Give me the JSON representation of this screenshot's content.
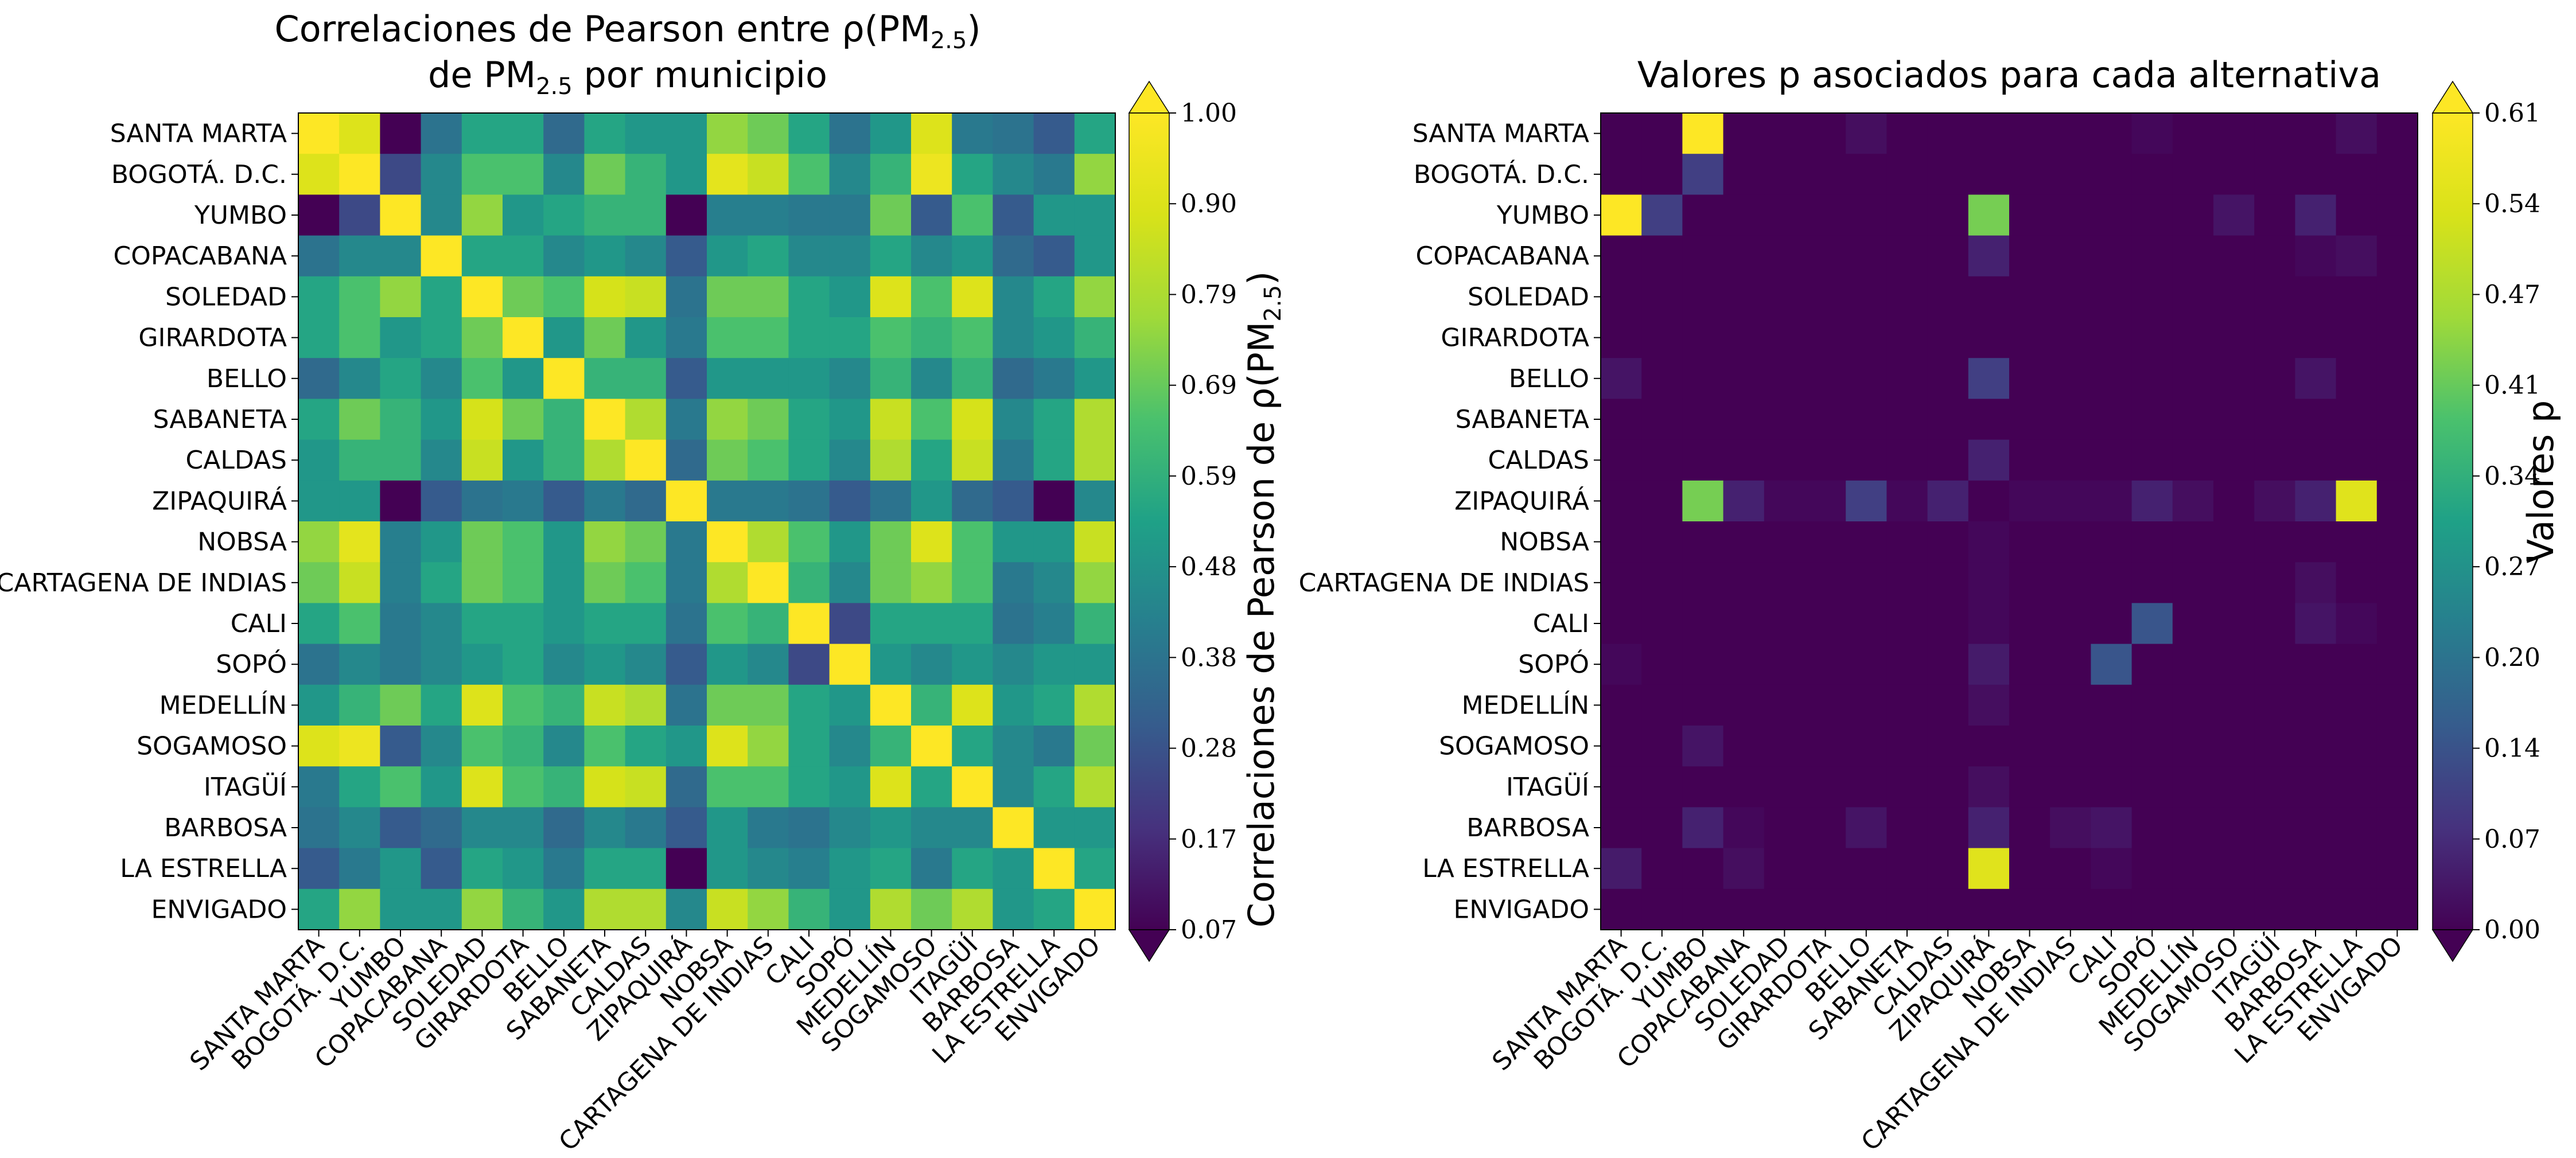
{
  "chart_data": [
    {
      "type": "heatmap",
      "title_line1": "Correlaciones de Pearson entre ρ(PM",
      "title_line1_sub": "2.5",
      "title_line1_end": ")",
      "title_line2": "de PM",
      "title_line2_sub": "2.5",
      "title_line2_end": " por municipio",
      "labels": [
        "SANTA MARTA",
        "BOGOTÁ. D.C.",
        "YUMBO",
        "COPACABANA",
        "SOLEDAD",
        "GIRARDOTA",
        "BELLO",
        "SABANETA",
        "CALDAS",
        "ZIPAQUIRÁ",
        "NOBSA",
        "CARTAGENA DE INDIAS",
        "CALI",
        "SOPÓ",
        "MEDELLÍN",
        "SOGAMOSO",
        "ITAGÜÍ",
        "BARBOSA",
        "LA ESTRELLA",
        "ENVIGADO"
      ],
      "colorbar": {
        "label": "Correlaciones de Pearson de ρ(PM",
        "label_sub": "2.5",
        "label_end": ")",
        "ticks": [
          "0.07",
          "0.17",
          "0.28",
          "0.38",
          "0.48",
          "0.59",
          "0.69",
          "0.79",
          "0.90",
          "1.00"
        ],
        "vmin": 0.07,
        "vmax": 1.0
      },
      "values": [
        [
          1.0,
          0.9,
          0.07,
          0.38,
          0.55,
          0.55,
          0.35,
          0.55,
          0.5,
          0.5,
          0.75,
          0.7,
          0.55,
          0.38,
          0.5,
          0.9,
          0.4,
          0.38,
          0.3,
          0.55
        ],
        [
          0.9,
          1.0,
          0.25,
          0.45,
          0.65,
          0.65,
          0.45,
          0.7,
          0.6,
          0.5,
          0.92,
          0.85,
          0.65,
          0.45,
          0.6,
          0.95,
          0.55,
          0.45,
          0.4,
          0.75
        ],
        [
          0.07,
          0.25,
          1.0,
          0.45,
          0.75,
          0.5,
          0.55,
          0.6,
          0.6,
          0.07,
          0.42,
          0.42,
          0.4,
          0.4,
          0.7,
          0.3,
          0.65,
          0.3,
          0.5,
          0.5
        ],
        [
          0.38,
          0.45,
          0.45,
          1.0,
          0.55,
          0.55,
          0.45,
          0.5,
          0.45,
          0.3,
          0.5,
          0.55,
          0.45,
          0.45,
          0.55,
          0.45,
          0.5,
          0.35,
          0.3,
          0.5
        ],
        [
          0.55,
          0.65,
          0.75,
          0.55,
          1.0,
          0.7,
          0.65,
          0.88,
          0.85,
          0.38,
          0.7,
          0.7,
          0.55,
          0.5,
          0.9,
          0.65,
          0.9,
          0.45,
          0.55,
          0.75
        ],
        [
          0.55,
          0.65,
          0.5,
          0.55,
          0.7,
          1.0,
          0.5,
          0.7,
          0.5,
          0.4,
          0.65,
          0.65,
          0.55,
          0.55,
          0.65,
          0.6,
          0.65,
          0.45,
          0.5,
          0.6
        ],
        [
          0.35,
          0.45,
          0.55,
          0.45,
          0.65,
          0.5,
          1.0,
          0.6,
          0.6,
          0.3,
          0.5,
          0.5,
          0.5,
          0.45,
          0.6,
          0.45,
          0.6,
          0.35,
          0.4,
          0.5
        ],
        [
          0.55,
          0.7,
          0.6,
          0.5,
          0.88,
          0.7,
          0.6,
          1.0,
          0.8,
          0.4,
          0.75,
          0.7,
          0.55,
          0.5,
          0.85,
          0.65,
          0.88,
          0.45,
          0.55,
          0.8
        ],
        [
          0.5,
          0.6,
          0.6,
          0.45,
          0.85,
          0.5,
          0.6,
          0.8,
          1.0,
          0.35,
          0.7,
          0.65,
          0.55,
          0.45,
          0.8,
          0.55,
          0.85,
          0.4,
          0.55,
          0.8
        ],
        [
          0.5,
          0.5,
          0.07,
          0.3,
          0.38,
          0.4,
          0.3,
          0.4,
          0.35,
          1.0,
          0.4,
          0.4,
          0.38,
          0.3,
          0.38,
          0.5,
          0.35,
          0.3,
          0.07,
          0.45
        ],
        [
          0.75,
          0.92,
          0.42,
          0.5,
          0.7,
          0.65,
          0.5,
          0.75,
          0.7,
          0.4,
          1.0,
          0.8,
          0.65,
          0.5,
          0.7,
          0.9,
          0.65,
          0.5,
          0.5,
          0.85
        ],
        [
          0.7,
          0.85,
          0.42,
          0.55,
          0.7,
          0.65,
          0.5,
          0.7,
          0.65,
          0.4,
          0.8,
          1.0,
          0.6,
          0.45,
          0.7,
          0.75,
          0.65,
          0.4,
          0.45,
          0.75
        ],
        [
          0.55,
          0.65,
          0.4,
          0.45,
          0.55,
          0.55,
          0.5,
          0.55,
          0.55,
          0.38,
          0.65,
          0.6,
          1.0,
          0.25,
          0.55,
          0.55,
          0.55,
          0.38,
          0.42,
          0.6
        ],
        [
          0.38,
          0.45,
          0.4,
          0.45,
          0.5,
          0.55,
          0.45,
          0.5,
          0.45,
          0.3,
          0.5,
          0.45,
          0.25,
          1.0,
          0.5,
          0.45,
          0.5,
          0.45,
          0.5,
          0.5
        ],
        [
          0.5,
          0.6,
          0.7,
          0.55,
          0.9,
          0.65,
          0.6,
          0.85,
          0.8,
          0.38,
          0.7,
          0.7,
          0.55,
          0.5,
          1.0,
          0.6,
          0.9,
          0.5,
          0.55,
          0.8
        ],
        [
          0.9,
          0.95,
          0.3,
          0.45,
          0.65,
          0.6,
          0.45,
          0.65,
          0.55,
          0.5,
          0.9,
          0.75,
          0.55,
          0.45,
          0.6,
          1.0,
          0.55,
          0.45,
          0.4,
          0.7
        ],
        [
          0.4,
          0.55,
          0.65,
          0.5,
          0.9,
          0.65,
          0.6,
          0.88,
          0.85,
          0.35,
          0.65,
          0.65,
          0.55,
          0.5,
          0.9,
          0.55,
          1.0,
          0.45,
          0.55,
          0.8
        ],
        [
          0.38,
          0.45,
          0.3,
          0.35,
          0.45,
          0.45,
          0.35,
          0.45,
          0.4,
          0.3,
          0.5,
          0.4,
          0.38,
          0.45,
          0.5,
          0.45,
          0.45,
          1.0,
          0.5,
          0.5
        ],
        [
          0.3,
          0.4,
          0.5,
          0.3,
          0.55,
          0.5,
          0.4,
          0.55,
          0.55,
          0.07,
          0.5,
          0.45,
          0.42,
          0.5,
          0.55,
          0.4,
          0.55,
          0.5,
          1.0,
          0.55
        ],
        [
          0.55,
          0.75,
          0.5,
          0.5,
          0.75,
          0.6,
          0.5,
          0.8,
          0.8,
          0.45,
          0.85,
          0.75,
          0.6,
          0.5,
          0.8,
          0.7,
          0.8,
          0.5,
          0.55,
          1.0
        ]
      ]
    },
    {
      "type": "heatmap",
      "title": "Valores p asociados para cada alternativa",
      "labels": [
        "SANTA MARTA",
        "BOGOTÁ. D.C.",
        "YUMBO",
        "COPACABANA",
        "SOLEDAD",
        "GIRARDOTA",
        "BELLO",
        "SABANETA",
        "CALDAS",
        "ZIPAQUIRÁ",
        "NOBSA",
        "CARTAGENA DE INDIAS",
        "CALI",
        "SOPÓ",
        "MEDELLÍN",
        "SOGAMOSO",
        "ITAGÜÍ",
        "BARBOSA",
        "LA ESTRELLA",
        "ENVIGADO"
      ],
      "colorbar": {
        "label": "Valores p",
        "ticks": [
          "0.00",
          "0.07",
          "0.14",
          "0.20",
          "0.27",
          "0.34",
          "0.41",
          "0.47",
          "0.54",
          "0.61"
        ],
        "vmin": 0.0,
        "vmax": 0.61
      },
      "values": [
        [
          0,
          0,
          0.61,
          0,
          0,
          0,
          0.02,
          0,
          0,
          0,
          0,
          0,
          0,
          0.01,
          0,
          0,
          0,
          0,
          0.02,
          0
        ],
        [
          0,
          0,
          0.1,
          0,
          0,
          0,
          0,
          0,
          0,
          0,
          0,
          0,
          0,
          0,
          0,
          0,
          0,
          0,
          0,
          0
        ],
        [
          0.61,
          0.1,
          0,
          0,
          0,
          0,
          0,
          0,
          0,
          0.42,
          0,
          0,
          0,
          0,
          0,
          0.03,
          0,
          0.05,
          0,
          0
        ],
        [
          0,
          0,
          0,
          0,
          0,
          0,
          0,
          0,
          0,
          0.05,
          0,
          0,
          0,
          0,
          0,
          0,
          0,
          0.01,
          0.02,
          0
        ],
        [
          0,
          0,
          0,
          0,
          0,
          0,
          0,
          0,
          0,
          0,
          0,
          0,
          0,
          0,
          0,
          0,
          0,
          0,
          0,
          0
        ],
        [
          0,
          0,
          0,
          0,
          0,
          0,
          0,
          0,
          0,
          0,
          0,
          0,
          0,
          0,
          0,
          0,
          0,
          0,
          0,
          0
        ],
        [
          0.03,
          0,
          0,
          0,
          0,
          0,
          0,
          0,
          0,
          0.1,
          0,
          0,
          0,
          0,
          0,
          0,
          0,
          0.03,
          0,
          0
        ],
        [
          0,
          0,
          0,
          0,
          0,
          0,
          0,
          0,
          0,
          0,
          0,
          0,
          0,
          0,
          0,
          0,
          0,
          0,
          0,
          0
        ],
        [
          0,
          0,
          0,
          0,
          0,
          0,
          0,
          0,
          0,
          0.05,
          0,
          0,
          0,
          0,
          0,
          0,
          0,
          0,
          0,
          0
        ],
        [
          0,
          0,
          0.42,
          0.05,
          0.01,
          0.01,
          0.1,
          0.01,
          0.05,
          0,
          0.01,
          0.01,
          0.01,
          0.05,
          0.02,
          0,
          0.02,
          0.05,
          0.55,
          0
        ],
        [
          0,
          0,
          0,
          0,
          0,
          0,
          0,
          0,
          0,
          0.01,
          0,
          0,
          0,
          0,
          0,
          0,
          0,
          0,
          0,
          0
        ],
        [
          0,
          0,
          0,
          0,
          0,
          0,
          0,
          0,
          0,
          0.01,
          0,
          0,
          0,
          0,
          0,
          0,
          0,
          0.02,
          0,
          0
        ],
        [
          0,
          0,
          0,
          0,
          0,
          0,
          0,
          0,
          0,
          0.01,
          0,
          0,
          0,
          0.14,
          0,
          0,
          0,
          0.03,
          0.01,
          0
        ],
        [
          0.01,
          0,
          0,
          0,
          0,
          0,
          0,
          0,
          0,
          0.04,
          0,
          0,
          0.14,
          0,
          0,
          0,
          0,
          0,
          0,
          0
        ],
        [
          0,
          0,
          0,
          0,
          0,
          0,
          0,
          0,
          0,
          0.02,
          0,
          0,
          0,
          0,
          0,
          0,
          0,
          0,
          0,
          0
        ],
        [
          0,
          0,
          0.03,
          0,
          0,
          0,
          0,
          0,
          0,
          0,
          0,
          0,
          0,
          0,
          0,
          0,
          0,
          0,
          0,
          0
        ],
        [
          0,
          0,
          0,
          0,
          0,
          0,
          0,
          0,
          0,
          0.02,
          0,
          0,
          0,
          0,
          0,
          0,
          0,
          0,
          0,
          0
        ],
        [
          0,
          0,
          0.05,
          0.01,
          0,
          0,
          0.03,
          0,
          0,
          0.05,
          0,
          0.02,
          0.03,
          0,
          0,
          0,
          0,
          0,
          0,
          0
        ],
        [
          0.04,
          0,
          0,
          0.02,
          0,
          0,
          0,
          0,
          0,
          0.55,
          0,
          0,
          0.01,
          0,
          0,
          0,
          0,
          0,
          0,
          0
        ],
        [
          0,
          0,
          0,
          0,
          0,
          0,
          0,
          0,
          0,
          0,
          0,
          0,
          0,
          0,
          0,
          0,
          0,
          0,
          0,
          0
        ]
      ]
    }
  ]
}
